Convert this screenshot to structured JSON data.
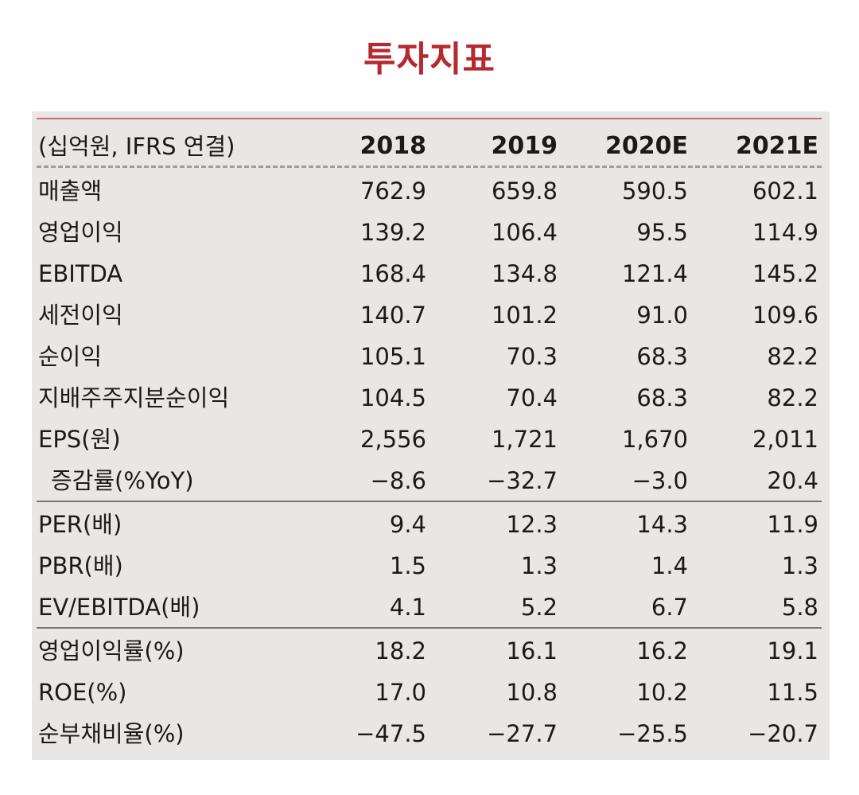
{
  "title": "투자지표",
  "table": {
    "unit_label": "(십억원, IFRS 연결)",
    "columns": [
      "2018",
      "2019",
      "2020E",
      "2021E"
    ],
    "rows": [
      {
        "label": "매출액",
        "values": [
          "762.9",
          "659.8",
          "590.5",
          "602.1"
        ]
      },
      {
        "label": "영업이익",
        "values": [
          "139.2",
          "106.4",
          "95.5",
          "114.9"
        ]
      },
      {
        "label": "EBITDA",
        "values": [
          "168.4",
          "134.8",
          "121.4",
          "145.2"
        ]
      },
      {
        "label": "세전이익",
        "values": [
          "140.7",
          "101.2",
          "91.0",
          "109.6"
        ]
      },
      {
        "label": "순이익",
        "values": [
          "105.1",
          "70.3",
          "68.3",
          "82.2"
        ]
      },
      {
        "label": "지배주주지분순이익",
        "values": [
          "104.5",
          "70.4",
          "68.3",
          "82.2"
        ]
      },
      {
        "label": "EPS(원)",
        "values": [
          "2,556",
          "1,721",
          "1,670",
          "2,011"
        ]
      },
      {
        "label": "증감률(%YoY)",
        "values": [
          "−8.6",
          "−32.7",
          "−3.0",
          "20.4"
        ]
      },
      {
        "label": "PER(배)",
        "values": [
          "9.4",
          "12.3",
          "14.3",
          "11.9"
        ]
      },
      {
        "label": "PBR(배)",
        "values": [
          "1.5",
          "1.3",
          "1.4",
          "1.3"
        ]
      },
      {
        "label": "EV/EBITDA(배)",
        "values": [
          "4.1",
          "5.2",
          "6.7",
          "5.8"
        ]
      },
      {
        "label": "영업이익률(%)",
        "values": [
          "18.2",
          "16.1",
          "16.2",
          "19.1"
        ]
      },
      {
        "label": "ROE(%)",
        "values": [
          "17.0",
          "10.8",
          "10.2",
          "11.5"
        ]
      },
      {
        "label": "순부채비율(%)",
        "values": [
          "−47.5",
          "−27.7",
          "−25.5",
          "−20.7"
        ]
      }
    ]
  }
}
